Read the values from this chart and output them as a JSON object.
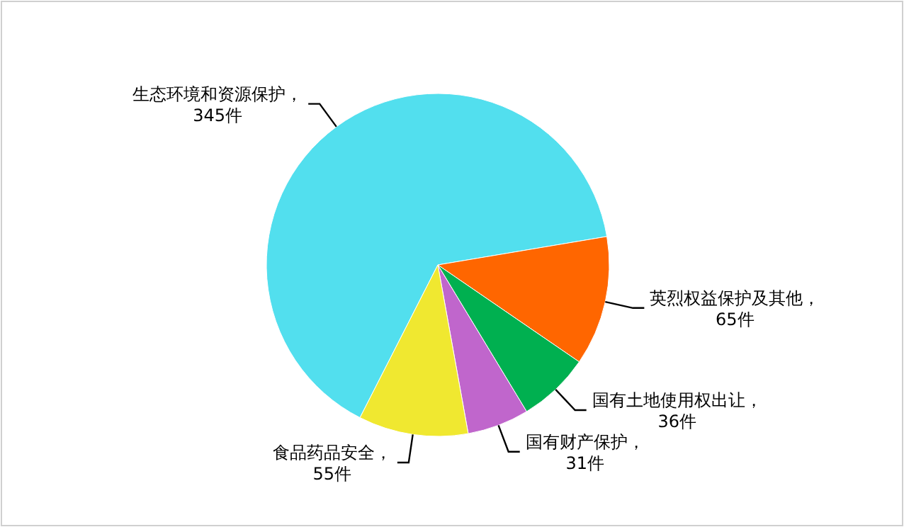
{
  "chart_data": {
    "type": "pie",
    "categories": [
      "生态环境和资源保护",
      "英烈权益保护及其他",
      "国有土地使用权出让",
      "国有财产保护",
      "食品药品安全"
    ],
    "values": [
      345,
      65,
      36,
      31,
      55
    ],
    "value_labels": [
      "，\n345件",
      "，\n65件",
      "，\n36件",
      "，\n31件",
      "，\n55件"
    ],
    "colors": [
      "#52dfee",
      "#ff6600",
      "#00b050",
      "#c066cc",
      "#f0e830"
    ]
  }
}
